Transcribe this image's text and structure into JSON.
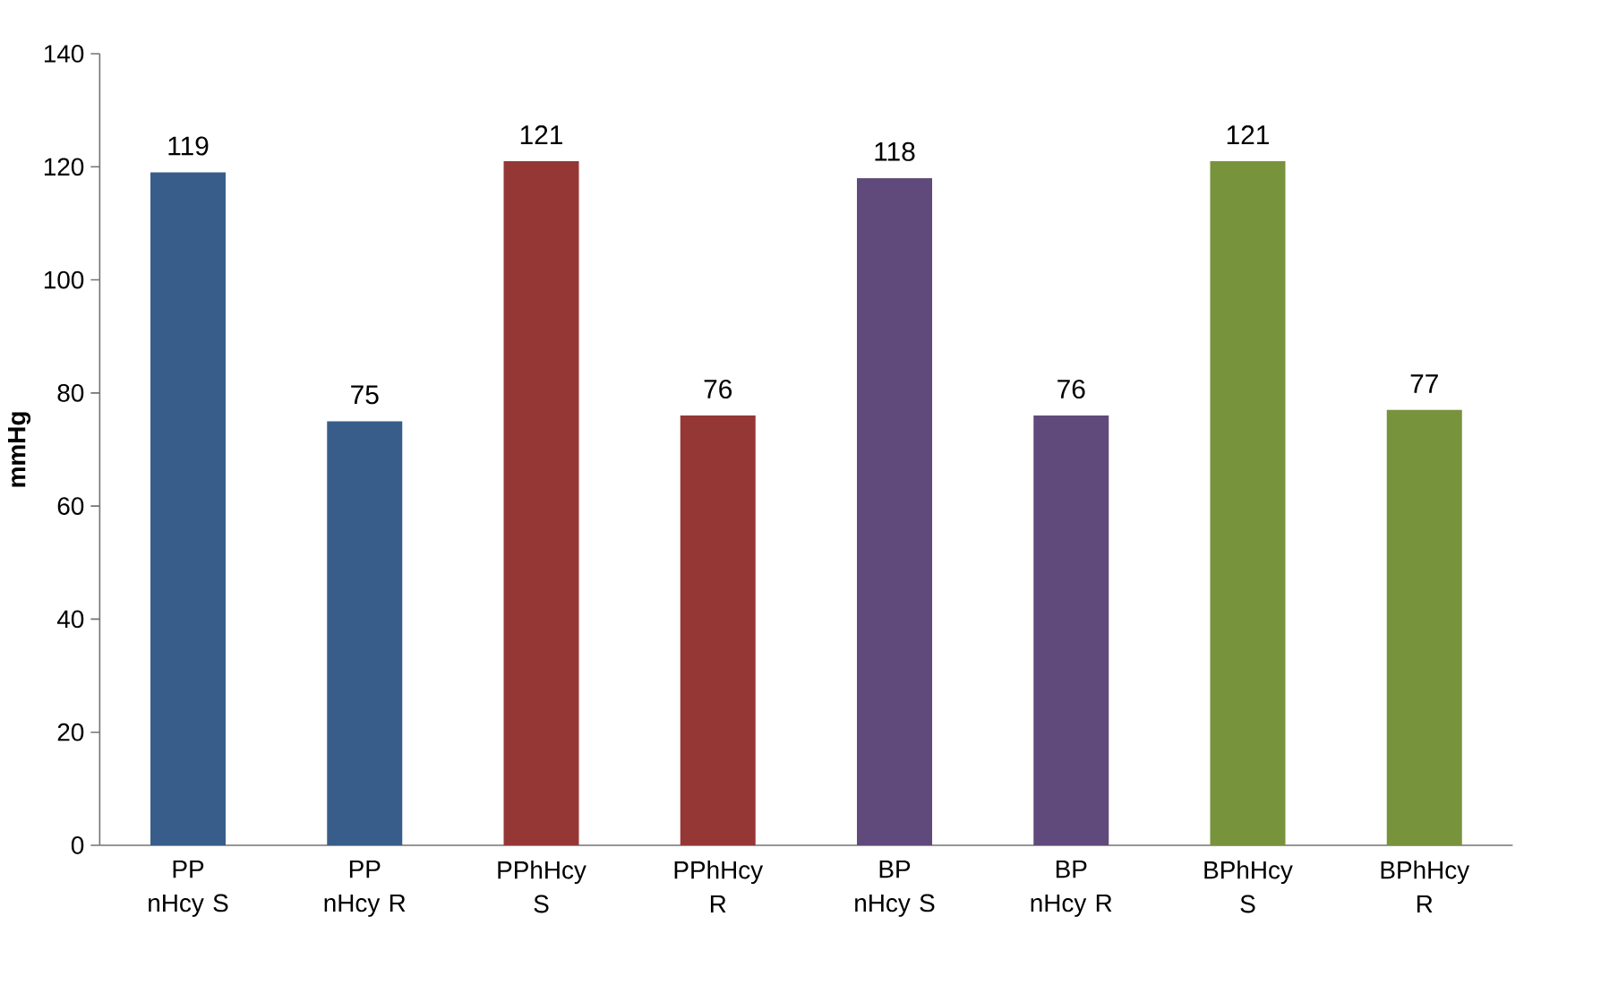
{
  "chart_data": {
    "type": "bar",
    "ylabel": "mmHg",
    "categories": [
      "PP nHcy S",
      "PP nHcy R",
      "PPhHcy S",
      "PPhHcy R",
      "BP nHcy S",
      "BP nHcy R",
      "BPhHcy S",
      "BPhHcy R"
    ],
    "values": [
      119,
      75,
      121,
      76,
      118,
      76,
      121,
      77
    ],
    "colors": [
      "#385d8a",
      "#385d8a",
      "#953735",
      "#953735",
      "#604a7b",
      "#604a7b",
      "#77933c",
      "#77933c"
    ],
    "ylim": [
      0,
      140
    ],
    "yticks": [
      0,
      20,
      40,
      60,
      80,
      100,
      120,
      140
    ],
    "data_labels": true
  }
}
